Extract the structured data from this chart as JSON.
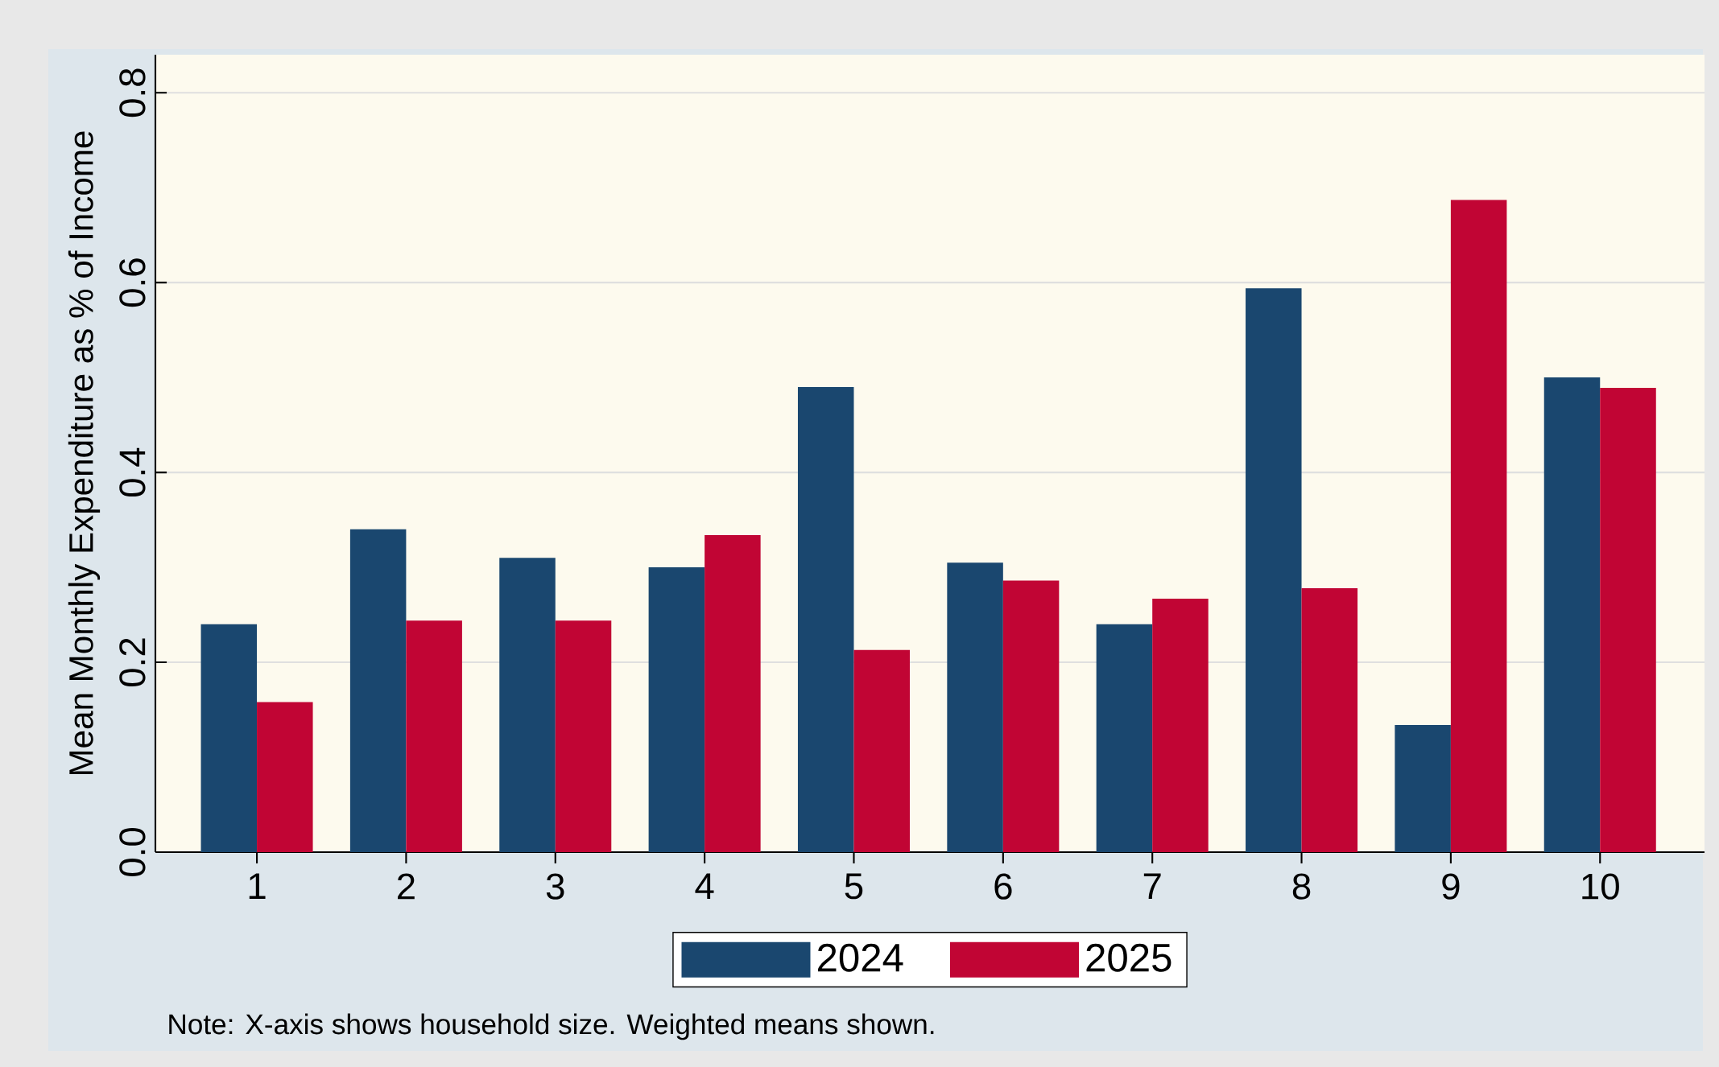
{
  "chart_data": {
    "type": "bar",
    "ylabel": "Mean Monthly Expenditure as % of Income",
    "categories": [
      "1",
      "2",
      "3",
      "4",
      "5",
      "6",
      "7",
      "8",
      "9",
      "10"
    ],
    "series": [
      {
        "name": "2024",
        "color": "#1a476f",
        "values": [
          0.24,
          0.34,
          0.31,
          0.3,
          0.49,
          0.305,
          0.24,
          0.594,
          0.134,
          0.5
        ]
      },
      {
        "name": "2025",
        "color": "#c10534",
        "values": [
          0.158,
          0.244,
          0.244,
          0.334,
          0.213,
          0.286,
          0.267,
          0.278,
          0.687,
          0.489
        ]
      }
    ],
    "ylim": [
      0,
      0.84
    ],
    "yticks": [
      {
        "value": 0,
        "label": "0.0"
      },
      {
        "value": 0.2,
        "label": "0.2"
      },
      {
        "value": 0.4,
        "label": "0.4"
      },
      {
        "value": 0.6,
        "label": "0.6"
      },
      {
        "value": 0.8,
        "label": "0.8"
      }
    ],
    "grid": "y",
    "legend": "bottom",
    "annotations": [
      "Note: X-axis shows household size. Weighted means shown."
    ]
  }
}
